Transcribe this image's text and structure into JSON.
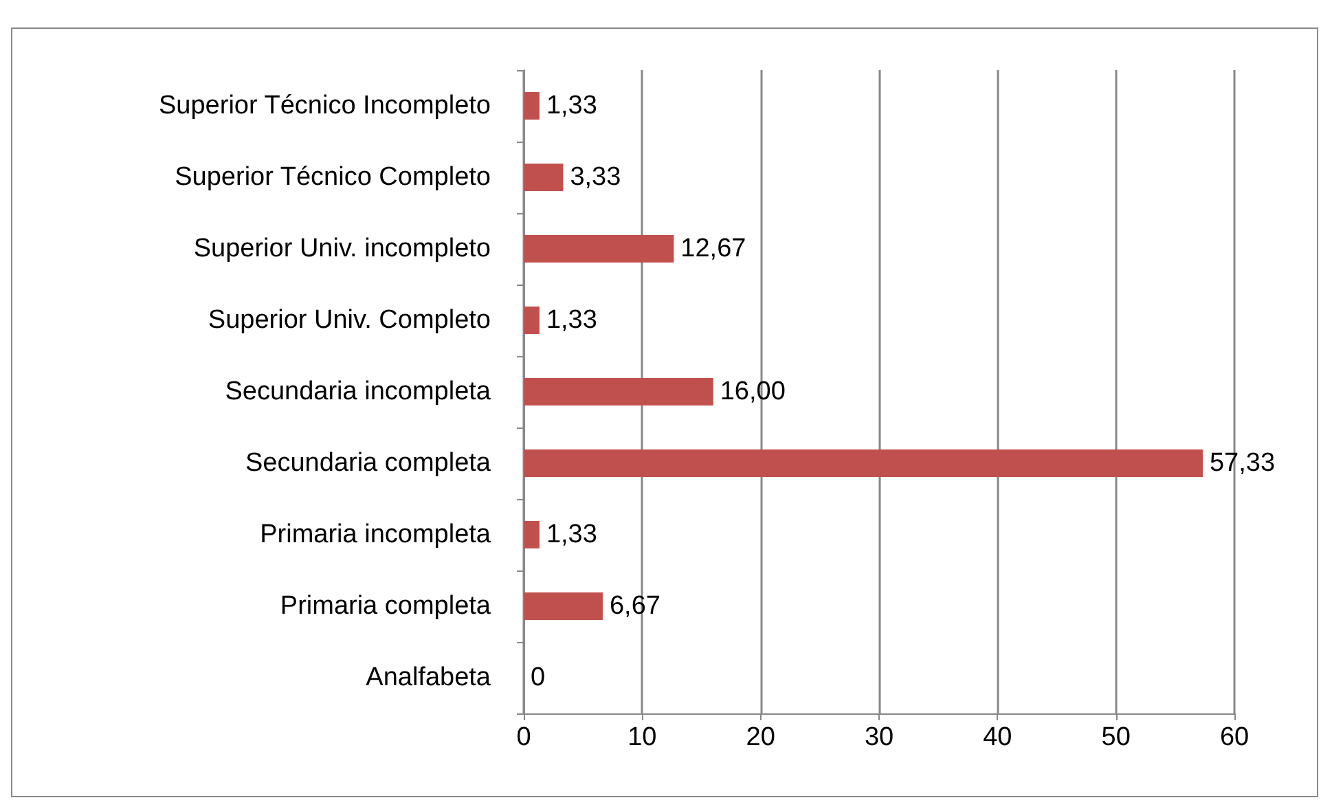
{
  "chart_data": {
    "type": "bar",
    "orientation": "horizontal",
    "categories": [
      "Superior Técnico Incompleto",
      "Superior Técnico Completo",
      "Superior Univ. incompleto",
      "Superior Univ. Completo",
      "Secundaria incompleta",
      "Secundaria completa",
      "Primaria incompleta",
      "Primaria completa",
      "Analfabeta"
    ],
    "values": [
      1.33,
      3.33,
      12.67,
      1.33,
      16.0,
      57.33,
      1.33,
      6.67,
      0
    ],
    "value_labels": [
      "1,33",
      "3,33",
      "12,67",
      "1,33",
      "16,00",
      "57,33",
      "1,33",
      "6,67",
      "0"
    ],
    "color": "#c0504d",
    "xlim": [
      0,
      60
    ],
    "xticks": [
      0,
      10,
      20,
      30,
      40,
      50,
      60
    ],
    "grid": "x"
  }
}
